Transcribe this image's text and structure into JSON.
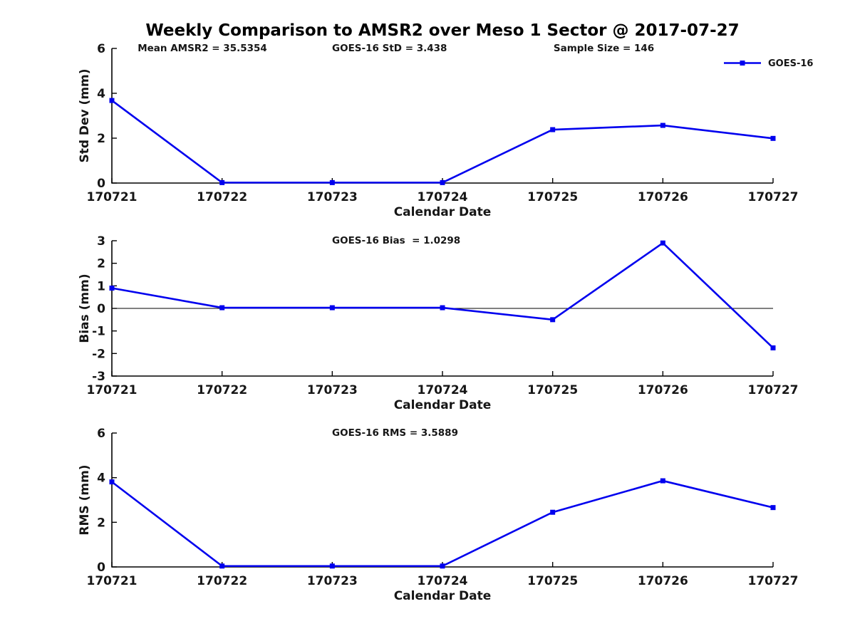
{
  "figure": {
    "title": "Weekly Comparison to AMSR2 over Meso 1 Sector @ 2017-07-27",
    "colors": {
      "series_line": "#0000EE",
      "axis": "#000000",
      "text": "#161616",
      "background": "#ffffff"
    }
  },
  "chart_data": [
    {
      "type": "line",
      "categories": [
        "170721",
        "170722",
        "170723",
        "170724",
        "170725",
        "170726",
        "170727"
      ],
      "series": [
        {
          "name": "GOES-16",
          "color": "#0000EE",
          "marker": "square",
          "values": [
            3.68,
            0.02,
            0.02,
            0.02,
            2.38,
            2.57,
            1.99
          ]
        }
      ],
      "xlabel": "Calendar Date",
      "ylabel": "Std Dev (mm)",
      "ylim": [
        0,
        6
      ],
      "yticks": [
        0,
        2,
        4,
        6
      ],
      "grid": false,
      "legend": {
        "show": true,
        "label": "GOES-16",
        "position": "upper-right"
      },
      "annotations": [
        {
          "text": "Mean AMSR2 = 35.5354",
          "xfrac": 0.039
        },
        {
          "text": "GOES-16 StD = 3.438",
          "xfrac": 0.333
        },
        {
          "text": "Sample Size = 146",
          "xfrac": 0.668
        }
      ],
      "zero_line": false
    },
    {
      "type": "line",
      "categories": [
        "170721",
        "170722",
        "170723",
        "170724",
        "170725",
        "170726",
        "170727"
      ],
      "series": [
        {
          "name": "GOES-16",
          "color": "#0000EE",
          "marker": "square",
          "values": [
            0.9,
            0.03,
            0.03,
            0.03,
            -0.5,
            2.9,
            -1.75
          ]
        }
      ],
      "xlabel": "Calendar Date",
      "ylabel": "Bias (mm)",
      "ylim": [
        -3,
        3
      ],
      "yticks": [
        -3,
        -2,
        -1,
        0,
        1,
        2,
        3
      ],
      "grid": false,
      "legend": {
        "show": false,
        "label": "",
        "position": ""
      },
      "annotations": [
        {
          "text": "GOES-16 Bias  = 1.0298",
          "xfrac": 0.333
        }
      ],
      "zero_line": true
    },
    {
      "type": "line",
      "categories": [
        "170721",
        "170722",
        "170723",
        "170724",
        "170725",
        "170726",
        "170727"
      ],
      "series": [
        {
          "name": "GOES-16",
          "color": "#0000EE",
          "marker": "square",
          "values": [
            3.81,
            0.04,
            0.04,
            0.04,
            2.45,
            3.86,
            2.66
          ]
        }
      ],
      "xlabel": "Calendar Date",
      "ylabel": "RMS (mm)",
      "ylim": [
        0,
        6
      ],
      "yticks": [
        0,
        2,
        4,
        6
      ],
      "grid": false,
      "legend": {
        "show": false,
        "label": "",
        "position": ""
      },
      "annotations": [
        {
          "text": "GOES-16 RMS = 3.5889",
          "xfrac": 0.333
        }
      ],
      "zero_line": false
    }
  ]
}
